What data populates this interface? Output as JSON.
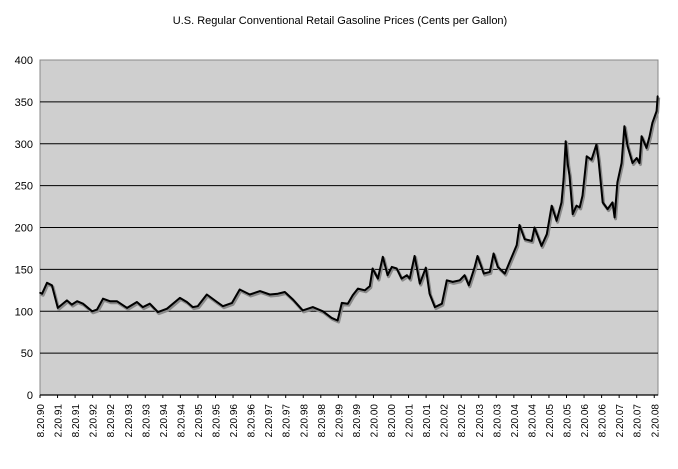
{
  "chart_data": {
    "type": "line",
    "title": "U.S. Regular Conventional Retail Gasoline Prices (Cents per Gallon)",
    "xlabel": "",
    "ylabel": "",
    "ylim": [
      0,
      400
    ],
    "xlim": [
      1990.63,
      2008.3
    ],
    "yticks": [
      0,
      50,
      100,
      150,
      200,
      250,
      300,
      350,
      400
    ],
    "xtick_labels": [
      "8.20.90",
      "2.20.91",
      "8.20.91",
      "2.20.92",
      "8.20.92",
      "2.20.93",
      "8.20.93",
      "2.20.94",
      "8.20.94",
      "2.20.95",
      "8.20.95",
      "2.20.96",
      "8.20.96",
      "2.20.97",
      "8.20.97",
      "2.20.98",
      "8.20.98",
      "2.20.99",
      "8.20.99",
      "2.20.00",
      "8.20.00",
      "2.20.01",
      "8.20.01",
      "2.20.02",
      "8.20.02",
      "2.20.03",
      "8.20.03",
      "2.20.04",
      "8.20.04",
      "2.20.05",
      "8.20.05",
      "2.20.06",
      "8.20.06",
      "2.20.07",
      "8.20.07",
      "2.20.08"
    ],
    "grid": true,
    "legend": "none",
    "colors": {
      "plot_bg": "#cfcfcf",
      "line": "#000000",
      "grid": "#000000"
    },
    "series": [
      {
        "name": "Regular Conventional Retail Gasoline Price",
        "x": [
          1990.63,
          1990.69,
          1990.83,
          1990.97,
          1991.14,
          1991.4,
          1991.54,
          1991.69,
          1991.86,
          1992.12,
          1992.26,
          1992.43,
          1992.63,
          1992.83,
          1993.12,
          1993.4,
          1993.57,
          1993.77,
          1994.0,
          1994.26,
          1994.63,
          1994.83,
          1995.0,
          1995.14,
          1995.4,
          1995.69,
          1995.86,
          1996.12,
          1996.34,
          1996.63,
          1996.92,
          1997.2,
          1997.43,
          1997.63,
          1997.86,
          1998.14,
          1998.43,
          1998.72,
          1998.97,
          1999.14,
          1999.26,
          1999.43,
          1999.57,
          1999.72,
          1999.92,
          2000.06,
          2000.14,
          2000.29,
          2000.43,
          2000.57,
          2000.69,
          2000.83,
          2000.97,
          2001.12,
          2001.2,
          2001.34,
          2001.49,
          2001.66,
          2001.77,
          2001.92,
          2002.12,
          2002.26,
          2002.43,
          2002.63,
          2002.77,
          2002.89,
          2003.06,
          2003.14,
          2003.32,
          2003.49,
          2003.6,
          2003.72,
          2003.92,
          2004.06,
          2004.26,
          2004.34,
          2004.49,
          2004.69,
          2004.77,
          2004.97,
          2005.12,
          2005.26,
          2005.4,
          2005.54,
          2005.6,
          2005.66,
          2005.72,
          2005.77,
          2005.86,
          2005.97,
          2006.06,
          2006.14,
          2006.26,
          2006.4,
          2006.54,
          2006.6,
          2006.72,
          2006.86,
          2007.0,
          2007.06,
          2007.14,
          2007.26,
          2007.34,
          2007.43,
          2007.57,
          2007.69,
          2007.77,
          2007.83,
          2007.97,
          2008.06,
          2008.14,
          2008.26,
          2008.29
        ],
        "values": [
          122,
          121,
          134,
          131,
          104,
          113,
          108,
          112,
          109,
          100,
          102,
          115,
          112,
          112,
          104,
          111,
          105,
          109,
          99,
          103,
          116,
          111,
          105,
          106,
          120,
          111,
          106,
          110,
          126,
          120,
          124,
          120,
          121,
          123,
          114,
          101,
          105,
          100,
          92,
          89,
          110,
          109,
          119,
          127,
          125,
          130,
          151,
          139,
          165,
          143,
          153,
          151,
          139,
          143,
          139,
          166,
          133,
          152,
          121,
          105,
          109,
          137,
          135,
          137,
          143,
          131,
          153,
          166,
          145,
          147,
          169,
          153,
          145,
          159,
          179,
          203,
          186,
          184,
          200,
          178,
          192,
          226,
          208,
          230,
          258,
          303,
          275,
          262,
          216,
          226,
          224,
          238,
          285,
          281,
          299,
          281,
          230,
          222,
          230,
          212,
          254,
          277,
          321,
          297,
          277,
          283,
          277,
          309,
          295,
          309,
          325,
          339,
          357
        ]
      }
    ]
  }
}
